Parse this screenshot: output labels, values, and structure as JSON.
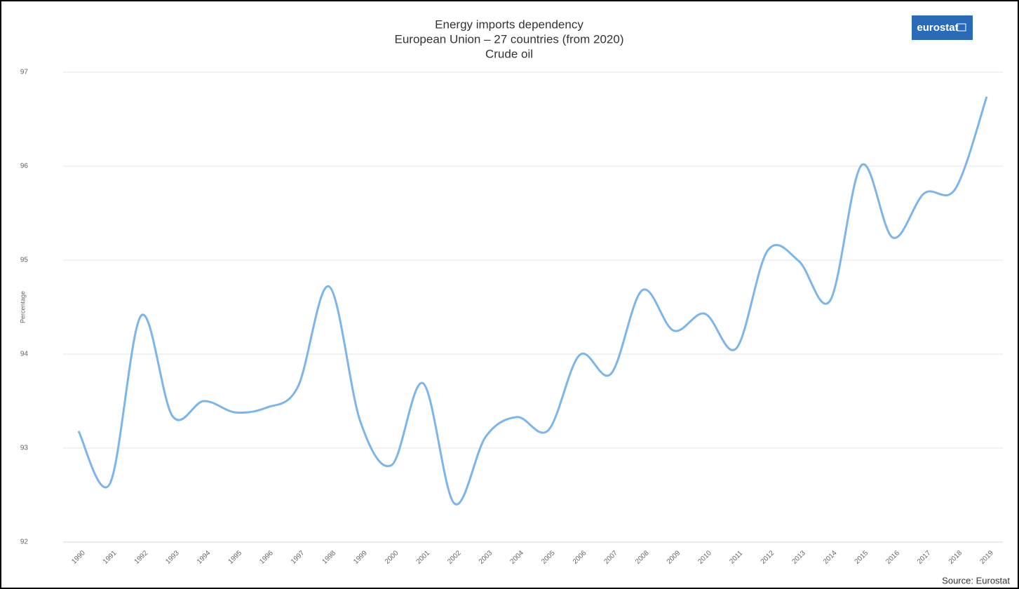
{
  "chart_data": {
    "type": "line",
    "title": "Energy imports dependency",
    "subtitle": [
      "European Union – 27 countries (from 2020)",
      "Crude oil"
    ],
    "y_label": "Percentage",
    "logo": "eurostat",
    "source": "Source: Eurostat",
    "categories": [
      "1990",
      "1991",
      "1992",
      "1993",
      "1994",
      "1995",
      "1996",
      "1997",
      "1998",
      "1999",
      "2000",
      "2001",
      "2002",
      "2003",
      "2004",
      "2005",
      "2006",
      "2007",
      "2008",
      "2009",
      "2010",
      "2011",
      "2012",
      "2013",
      "2014",
      "2015",
      "2016",
      "2017",
      "2018",
      "2019"
    ],
    "series": [
      {
        "name": "Crude oil",
        "color": "#7cb5ec",
        "values": [
          93.18,
          92.62,
          94.41,
          93.34,
          93.5,
          93.38,
          93.43,
          93.65,
          94.72,
          93.28,
          92.82,
          93.69,
          92.41,
          93.12,
          93.33,
          93.19,
          93.99,
          93.79,
          94.68,
          94.25,
          94.43,
          94.06,
          95.1,
          94.99,
          94.57,
          96.01,
          95.24,
          95.71,
          95.76,
          96.74
        ]
      }
    ],
    "ylim": [
      92,
      97
    ],
    "yticks": [
      92,
      93,
      94,
      95,
      96,
      97
    ],
    "grid": true
  }
}
